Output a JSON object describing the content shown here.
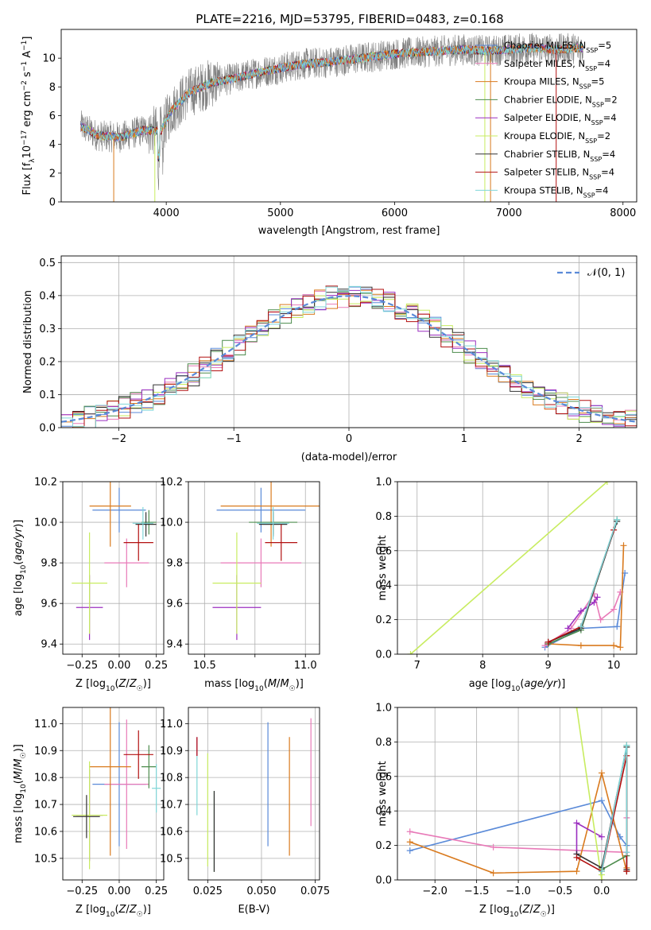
{
  "figure": {
    "title": "PLATE=2216, MJD=53795, FIBERID=0483, z=0.168"
  },
  "models": [
    {
      "name": "Chabrier MILES",
      "nssp": "5",
      "color": "#5a8ad8"
    },
    {
      "name": "Salpeter MILES",
      "nssp": "4",
      "color": "#e87ab8"
    },
    {
      "name": "Kroupa MILES",
      "nssp": "5",
      "color": "#d97a1e"
    },
    {
      "name": "Chabrier ELODIE",
      "nssp": "2",
      "color": "#4c8c4c"
    },
    {
      "name": "Salpeter ELODIE",
      "nssp": "4",
      "color": "#9b2fc0"
    },
    {
      "name": "Kroupa ELODIE",
      "nssp": "2",
      "color": "#c8ec60"
    },
    {
      "name": "Chabrier STELIB",
      "nssp": "4",
      "color": "#333333"
    },
    {
      "name": "Salpeter STELIB",
      "nssp": "4",
      "color": "#b21010"
    },
    {
      "name": "Kroupa STELIB",
      "nssp": "4",
      "color": "#7fd6d8"
    }
  ],
  "chart_data": [
    {
      "type": "line",
      "id": "spectrum",
      "xlabel": "wavelength [Angstrom, rest frame]",
      "ylabel": "Flux [f_λ 10^-17 erg cm^-2 s^-1 A^-1]",
      "xlim": [
        3080,
        8120
      ],
      "ylim": [
        0,
        12
      ],
      "xticks": [
        4000,
        5000,
        6000,
        7000,
        8000
      ],
      "yticks": [
        0,
        2,
        4,
        6,
        8,
        10
      ],
      "grid": false,
      "legend": "top-right",
      "continuum": {
        "x": [
          3250,
          3400,
          3600,
          3800,
          3950,
          4050,
          4200,
          4400,
          4600,
          4800,
          5000,
          5200,
          5400,
          5600,
          5800,
          6000,
          6200,
          6400,
          6600,
          6800,
          7000,
          7200,
          7400,
          7600
        ],
        "y": [
          5.3,
          4.6,
          4.5,
          5.0,
          4.9,
          6.4,
          7.6,
          8.3,
          8.6,
          9.0,
          9.3,
          9.6,
          9.7,
          9.9,
          10.1,
          10.3,
          10.4,
          10.5,
          10.6,
          10.5,
          10.6,
          10.7,
          10.6,
          10.7
        ]
      }
    },
    {
      "type": "line",
      "id": "residual-histogram",
      "xlabel": "(data-model)/error",
      "ylabel": "Normed distribution",
      "xlim": [
        -2.5,
        2.5
      ],
      "ylim": [
        0,
        0.52
      ],
      "xticks": [
        -2,
        -1,
        0,
        1,
        2
      ],
      "yticks": [
        0.0,
        0.1,
        0.2,
        0.3,
        0.4,
        0.5
      ],
      "grid": true,
      "legend": "top-right",
      "reference_label": "𝒩(0, 1)",
      "hist_bins": {
        "start": -2.5,
        "step": 0.1,
        "count": 50
      }
    },
    {
      "type": "scatter",
      "id": "age-vs-Z",
      "xlabel": "Z [log10(Z/Z☉)]",
      "ylabel": "age [log10(age/yr)]",
      "xlim": [
        -0.38,
        0.3
      ],
      "ylim": [
        9.35,
        10.2
      ],
      "xticks": [
        -0.25,
        0.0,
        0.25
      ],
      "yticks": [
        9.4,
        9.6,
        9.8,
        10.0,
        10.2
      ],
      "grid": true,
      "points": [
        {
          "model": 0,
          "x": 0.0,
          "y": 10.06,
          "xerr": 0.18,
          "yerr": 0.11
        },
        {
          "model": 1,
          "x": 0.05,
          "y": 9.8,
          "xerr": 0.15,
          "yerr": 0.12
        },
        {
          "model": 2,
          "x": -0.06,
          "y": 10.08,
          "xerr": 0.14,
          "yerr": 0.2
        },
        {
          "model": 3,
          "x": 0.2,
          "y": 10.0,
          "xerr": 0.05,
          "yerr": 0.06
        },
        {
          "model": 4,
          "x": -0.2,
          "y": 9.58,
          "xerr": 0.09,
          "yerr": 0.16
        },
        {
          "model": 5,
          "x": -0.2,
          "y": 9.7,
          "xerr": 0.12,
          "yerr": 0.25
        },
        {
          "model": 6,
          "x": 0.18,
          "y": 9.99,
          "xerr": 0.07,
          "yerr": 0.06
        },
        {
          "model": 7,
          "x": 0.13,
          "y": 9.9,
          "xerr": 0.1,
          "yerr": 0.09
        },
        {
          "model": 8,
          "x": 0.16,
          "y": 9.995,
          "xerr": 0.07,
          "yerr": 0.08
        }
      ]
    },
    {
      "type": "scatter",
      "id": "age-vs-mass",
      "xlabel": "mass [log10(M/M☉)]",
      "ylabel": "",
      "xlim": [
        10.42,
        11.07
      ],
      "ylim": [
        9.35,
        10.2
      ],
      "xticks": [
        10.5,
        10.75,
        11.0
      ],
      "tick_labels": [
        "10.5",
        "",
        "11.0"
      ],
      "yticks": [
        9.4,
        9.6,
        9.8,
        10.0,
        10.2
      ],
      "grid": true,
      "points": [
        {
          "model": 0,
          "x": 10.78,
          "y": 10.06,
          "xerr": 0.22,
          "yerr": 0.11
        },
        {
          "model": 1,
          "x": 10.78,
          "y": 9.8,
          "xerr": 0.2,
          "yerr": 0.12
        },
        {
          "model": 2,
          "x": 10.83,
          "y": 10.08,
          "xerr": 0.25,
          "yerr": 0.2
        },
        {
          "model": 3,
          "x": 10.84,
          "y": 10.0,
          "xerr": 0.12,
          "yerr": 0.06
        },
        {
          "model": 4,
          "x": 10.66,
          "y": 9.58,
          "xerr": 0.12,
          "yerr": 0.16
        },
        {
          "model": 5,
          "x": 10.66,
          "y": 9.7,
          "xerr": 0.12,
          "yerr": 0.25
        },
        {
          "model": 6,
          "x": 10.84,
          "y": 9.99,
          "xerr": 0.07,
          "yerr": 0.06
        },
        {
          "model": 7,
          "x": 10.88,
          "y": 9.9,
          "xerr": 0.08,
          "yerr": 0.09
        },
        {
          "model": 8,
          "x": 10.84,
          "y": 9.995,
          "xerr": 0.08,
          "yerr": 0.08
        }
      ]
    },
    {
      "type": "line",
      "id": "mass-weight-vs-age",
      "xlabel": "age [log10(age/yr)]",
      "ylabel": "mass weight",
      "xlim": [
        6.7,
        10.35
      ],
      "ylim": [
        0,
        1.0
      ],
      "xticks": [
        7,
        8,
        9,
        10
      ],
      "yticks": [
        0.0,
        0.2,
        0.4,
        0.6,
        0.8,
        1.0
      ],
      "grid": true,
      "series": [
        {
          "model": 0,
          "x": [
            8.95,
            9.5,
            10.05,
            10.17
          ],
          "y": [
            0.04,
            0.15,
            0.16,
            0.47
          ]
        },
        {
          "model": 1,
          "x": [
            8.95,
            9.35,
            9.7,
            9.8,
            10.0,
            10.1
          ],
          "y": [
            0.05,
            0.15,
            0.35,
            0.2,
            0.26,
            0.36
          ]
        },
        {
          "model": 2,
          "x": [
            9.0,
            9.5,
            10.0,
            10.1,
            10.15
          ],
          "y": [
            0.06,
            0.05,
            0.05,
            0.04,
            0.63
          ]
        },
        {
          "model": 3,
          "x": [
            9.0,
            9.5,
            10.05
          ],
          "y": [
            0.06,
            0.14,
            0.78
          ]
        },
        {
          "model": 4,
          "x": [
            9.3,
            9.5,
            9.7,
            9.75
          ],
          "y": [
            0.15,
            0.25,
            0.3,
            0.33
          ]
        },
        {
          "model": 5,
          "x": [
            6.9,
            9.9
          ],
          "y": [
            0.0,
            1.0
          ]
        },
        {
          "model": 6,
          "x": [
            9.0,
            9.5,
            10.05
          ],
          "y": [
            0.07,
            0.15,
            0.77
          ]
        },
        {
          "model": 7,
          "x": [
            9.0,
            9.5,
            10.0
          ],
          "y": [
            0.07,
            0.16,
            0.72
          ]
        },
        {
          "model": 8,
          "x": [
            9.5,
            10.05
          ],
          "y": [
            0.16,
            0.78
          ]
        }
      ]
    },
    {
      "type": "scatter",
      "id": "mass-vs-Z",
      "xlabel": "Z [log10(Z/Z☉)]",
      "ylabel": "mass [log10(M/M☉)]",
      "xlim": [
        -0.38,
        0.3
      ],
      "ylim": [
        10.42,
        11.06
      ],
      "xticks": [
        -0.25,
        0.0,
        0.25
      ],
      "yticks": [
        10.5,
        10.6,
        10.7,
        10.8,
        10.9,
        11.0
      ],
      "grid": true,
      "points": [
        {
          "model": 0,
          "x": 0.0,
          "y": 10.775,
          "xerr": 0.18,
          "yerr": 0.23
        },
        {
          "model": 1,
          "x": 0.05,
          "y": 10.775,
          "xerr": 0.15,
          "yerr": 0.24
        },
        {
          "model": 2,
          "x": -0.06,
          "y": 10.84,
          "xerr": 0.14,
          "yerr": 0.33
        },
        {
          "model": 3,
          "x": 0.2,
          "y": 10.84,
          "xerr": 0.05,
          "yerr": 0.08
        },
        {
          "model": 4,
          "x": -0.2,
          "y": 10.66,
          "xerr": 0.09,
          "yerr": 0.17
        },
        {
          "model": 5,
          "x": -0.2,
          "y": 10.66,
          "xerr": 0.12,
          "yerr": 0.2
        },
        {
          "model": 6,
          "x": -0.22,
          "y": 10.655,
          "xerr": 0.09,
          "yerr": 0.08
        },
        {
          "model": 7,
          "x": 0.13,
          "y": 10.885,
          "xerr": 0.1,
          "yerr": 0.09
        },
        {
          "model": 8,
          "x": 0.25,
          "y": 10.76,
          "xerr": 0.03,
          "yerr": 0.09
        }
      ]
    },
    {
      "type": "scatter",
      "id": "mass-vs-EBV",
      "xlabel": "E(B-V)",
      "ylabel": "",
      "xlim": [
        0.016,
        0.077
      ],
      "ylim": [
        10.42,
        11.06
      ],
      "xticks": [
        0.025,
        0.05,
        0.075
      ],
      "yticks": [
        10.5,
        10.6,
        10.7,
        10.8,
        10.9,
        11.0
      ],
      "grid": true,
      "points": [
        {
          "model": 0,
          "x": 0.053,
          "y": 10.775,
          "xerr": 0,
          "yerr": 0.23
        },
        {
          "model": 1,
          "x": 0.073,
          "y": 10.82,
          "xerr": 0,
          "yerr": 0.2
        },
        {
          "model": 2,
          "x": 0.063,
          "y": 10.73,
          "xerr": 0,
          "yerr": 0.22
        },
        {
          "model": 3,
          "x": 0.028,
          "y": 10.6,
          "xerr": 0,
          "yerr": 0.15
        },
        {
          "model": 4,
          "x": 0.02,
          "y": 10.915,
          "xerr": 0,
          "yerr": 0.035
        },
        {
          "model": 5,
          "x": 0.025,
          "y": 10.68,
          "xerr": 0,
          "yerr": 0.21
        },
        {
          "model": 6,
          "x": 0.028,
          "y": 10.6,
          "xerr": 0,
          "yerr": 0.15
        },
        {
          "model": 7,
          "x": 0.02,
          "y": 10.915,
          "xerr": 0,
          "yerr": 0.035
        },
        {
          "model": 8,
          "x": 0.02,
          "y": 10.77,
          "xerr": 0,
          "yerr": 0.11
        }
      ]
    },
    {
      "type": "line",
      "id": "mass-weight-vs-Z",
      "xlabel": "Z [log10(Z/Z☉)]",
      "ylabel": "mass weight",
      "xlim": [
        -2.45,
        0.42
      ],
      "ylim": [
        0,
        1.0
      ],
      "xticks": [
        -2.0,
        -1.5,
        -1.0,
        -0.5,
        0.0
      ],
      "yticks": [
        0.0,
        0.2,
        0.4,
        0.6,
        0.8,
        1.0
      ],
      "grid": true,
      "series": [
        {
          "model": 0,
          "x": [
            -2.3,
            0.0,
            0.22,
            0.3,
            0.3
          ],
          "y": [
            0.17,
            0.46,
            0.25,
            0.2,
            0.05
          ]
        },
        {
          "model": 1,
          "x": [
            -2.3,
            -1.3,
            0.3,
            0.3
          ],
          "y": [
            0.28,
            0.19,
            0.16,
            0.36
          ]
        },
        {
          "model": 2,
          "x": [
            -2.3,
            -1.3,
            -0.3,
            0.0,
            0.3,
            0.3
          ],
          "y": [
            0.22,
            0.04,
            0.05,
            0.62,
            0.05,
            0.07
          ]
        },
        {
          "model": 3,
          "x": [
            0.0,
            0.3,
            0.3
          ],
          "y": [
            0.06,
            0.14,
            0.78
          ]
        },
        {
          "model": 4,
          "x": [
            -0.3,
            -0.3,
            0.0
          ],
          "y": [
            0.15,
            0.33,
            0.25
          ]
        },
        {
          "model": 5,
          "x": [
            -0.3,
            0.0,
            0.0
          ],
          "y": [
            1.0,
            0.0,
            0.03
          ]
        },
        {
          "model": 6,
          "x": [
            -0.3,
            0.0,
            0.3,
            0.3
          ],
          "y": [
            0.15,
            0.07,
            0.77,
            0.06
          ]
        },
        {
          "model": 7,
          "x": [
            -0.3,
            0.0,
            0.3,
            0.3
          ],
          "y": [
            0.13,
            0.05,
            0.72,
            0.05
          ]
        },
        {
          "model": 8,
          "x": [
            0.0,
            0.3,
            0.3
          ],
          "y": [
            0.05,
            0.78,
            0.16
          ]
        }
      ]
    }
  ]
}
